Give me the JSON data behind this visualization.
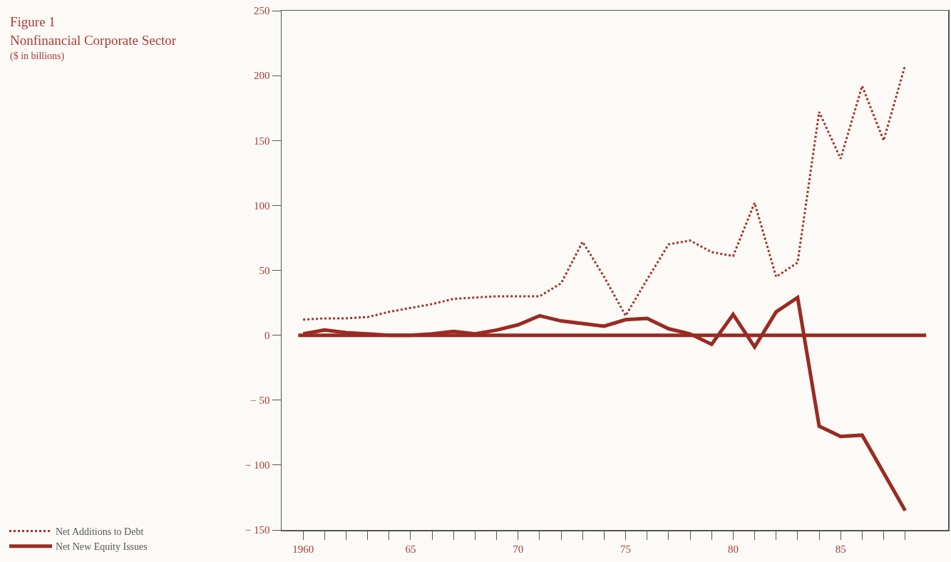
{
  "chart_data": {
    "type": "line",
    "title": "Figure 1",
    "subtitle": "Nonfinancial Corporate Sector",
    "annotations": [
      "($ in billions)"
    ],
    "x": [
      1960,
      1961,
      1962,
      1963,
      1964,
      1965,
      1966,
      1967,
      1968,
      1969,
      1970,
      1971,
      1972,
      1973,
      1974,
      1975,
      1976,
      1977,
      1978,
      1979,
      1980,
      1981,
      1982,
      1983,
      1984,
      1985,
      1986,
      1987,
      1988
    ],
    "series": [
      {
        "name": "Net Additions to Debt",
        "color": "#a8322a",
        "line_style": "dotted",
        "values": [
          12,
          13,
          13,
          14,
          18,
          21,
          24,
          28,
          29,
          30,
          30,
          30,
          40,
          72,
          45,
          15,
          43,
          70,
          73,
          64,
          61,
          102,
          45,
          56,
          172,
          136,
          192,
          150,
          208
        ]
      },
      {
        "name": "Net New Equity Issues",
        "color": "#9b2a22",
        "line_style": "solid",
        "values": [
          1,
          4,
          2,
          1,
          0,
          0,
          1,
          3,
          1,
          4,
          8,
          15,
          11,
          9,
          7,
          12,
          13,
          5,
          1,
          -7,
          16,
          -9,
          18,
          29,
          -70,
          -78,
          -77,
          -106,
          -135
        ]
      }
    ],
    "ref_lines": [
      {
        "axis": "y",
        "value": 0,
        "color": "#9b2a22"
      }
    ],
    "xlim": [
      1959,
      1990
    ],
    "xticks": [
      {
        "value": 1960,
        "label": "1960"
      },
      {
        "value": 1961,
        "label": null
      },
      {
        "value": 1962,
        "label": null
      },
      {
        "value": 1963,
        "label": null
      },
      {
        "value": 1964,
        "label": null
      },
      {
        "value": 1965,
        "label": "65"
      },
      {
        "value": 1966,
        "label": null
      },
      {
        "value": 1967,
        "label": null
      },
      {
        "value": 1968,
        "label": null
      },
      {
        "value": 1969,
        "label": null
      },
      {
        "value": 1970,
        "label": "70"
      },
      {
        "value": 1971,
        "label": null
      },
      {
        "value": 1972,
        "label": null
      },
      {
        "value": 1973,
        "label": null
      },
      {
        "value": 1974,
        "label": null
      },
      {
        "value": 1975,
        "label": "75"
      },
      {
        "value": 1976,
        "label": null
      },
      {
        "value": 1977,
        "label": null
      },
      {
        "value": 1978,
        "label": null
      },
      {
        "value": 1979,
        "label": null
      },
      {
        "value": 1980,
        "label": "80"
      },
      {
        "value": 1981,
        "label": null
      },
      {
        "value": 1982,
        "label": null
      },
      {
        "value": 1983,
        "label": null
      },
      {
        "value": 1984,
        "label": null
      },
      {
        "value": 1985,
        "label": "85"
      },
      {
        "value": 1986,
        "label": null
      },
      {
        "value": 1987,
        "label": null
      },
      {
        "value": 1988,
        "label": null
      }
    ],
    "ylim": [
      -150,
      250
    ],
    "yticks": [
      {
        "value": -150,
        "label": "− 150"
      },
      {
        "value": -100,
        "label": "− 100"
      },
      {
        "value": -50,
        "label": "− 50"
      },
      0,
      50,
      100,
      150,
      200,
      250
    ],
    "grid": false,
    "legend": "bottom left",
    "marker": "none"
  }
}
